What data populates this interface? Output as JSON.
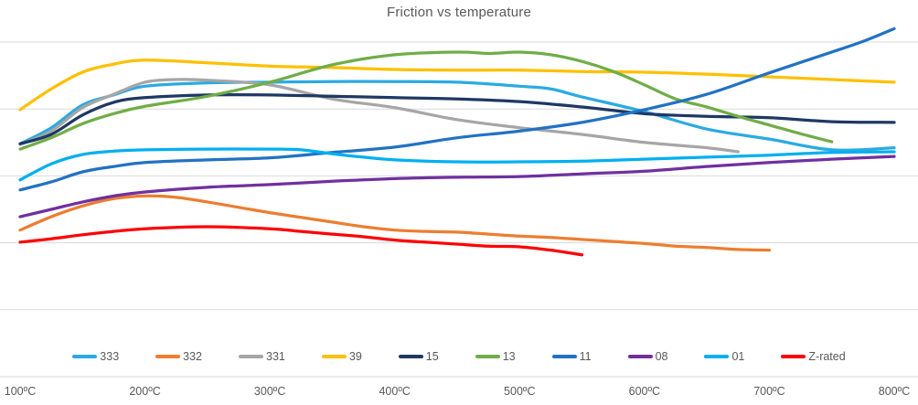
{
  "title": "Friction vs temperature",
  "colors": {
    "background": "#ffffff",
    "gridline": "#d9d9d9",
    "axis_line": "#d9d9d9",
    "title_text": "#595959",
    "label_text": "#595959"
  },
  "chart_data": {
    "type": "line",
    "title": "Friction vs temperature",
    "xlabel": "",
    "ylabel": "",
    "x_unit": "ºC",
    "x_range": [
      100,
      800
    ],
    "y_axis_labels_visible": false,
    "y_gridlines": [
      0,
      0.1,
      0.2,
      0.3,
      0.4,
      0.5
    ],
    "grid": true,
    "legend_position": "bottom",
    "x_ticks": [
      {
        "label": "100ºC",
        "t": 100
      },
      {
        "label": "200ºC",
        "t": 200
      },
      {
        "label": "300ºC",
        "t": 300
      },
      {
        "label": "400ºC",
        "t": 400
      },
      {
        "label": "500ºC",
        "t": 500
      },
      {
        "label": "600ºC",
        "t": 600
      },
      {
        "label": "700ºC",
        "t": 700
      },
      {
        "label": "800ºC",
        "t": 800
      }
    ],
    "series": [
      {
        "name": "333",
        "color": "#2baae2",
        "points": [
          [
            100,
            0.348
          ],
          [
            125,
            0.372
          ],
          [
            150,
            0.406
          ],
          [
            175,
            0.421
          ],
          [
            200,
            0.434
          ],
          [
            250,
            0.439
          ],
          [
            300,
            0.44
          ],
          [
            350,
            0.441
          ],
          [
            400,
            0.441
          ],
          [
            450,
            0.44
          ],
          [
            500,
            0.434
          ],
          [
            525,
            0.43
          ],
          [
            550,
            0.418
          ],
          [
            600,
            0.396
          ],
          [
            650,
            0.37
          ],
          [
            700,
            0.355
          ],
          [
            750,
            0.339
          ],
          [
            800,
            0.342
          ]
        ]
      },
      {
        "name": "332",
        "color": "#ed7d31",
        "points": [
          [
            100,
            0.219
          ],
          [
            125,
            0.239
          ],
          [
            150,
            0.255
          ],
          [
            175,
            0.266
          ],
          [
            200,
            0.27
          ],
          [
            225,
            0.268
          ],
          [
            250,
            0.261
          ],
          [
            275,
            0.253
          ],
          [
            300,
            0.245
          ],
          [
            325,
            0.238
          ],
          [
            350,
            0.231
          ],
          [
            375,
            0.224
          ],
          [
            400,
            0.219
          ],
          [
            425,
            0.217
          ],
          [
            450,
            0.216
          ],
          [
            475,
            0.213
          ],
          [
            500,
            0.21
          ],
          [
            525,
            0.208
          ],
          [
            550,
            0.205
          ],
          [
            575,
            0.202
          ],
          [
            600,
            0.199
          ],
          [
            625,
            0.195
          ],
          [
            650,
            0.193
          ],
          [
            675,
            0.19
          ],
          [
            700,
            0.189
          ]
        ]
      },
      {
        "name": "331",
        "color": "#a6a6a6",
        "points": [
          [
            100,
            0.347
          ],
          [
            125,
            0.367
          ],
          [
            150,
            0.402
          ],
          [
            175,
            0.422
          ],
          [
            200,
            0.44
          ],
          [
            225,
            0.444
          ],
          [
            250,
            0.443
          ],
          [
            300,
            0.436
          ],
          [
            350,
            0.415
          ],
          [
            400,
            0.402
          ],
          [
            450,
            0.384
          ],
          [
            500,
            0.372
          ],
          [
            550,
            0.362
          ],
          [
            600,
            0.35
          ],
          [
            650,
            0.342
          ],
          [
            675,
            0.336
          ]
        ]
      },
      {
        "name": "39",
        "color": "#ffc000",
        "points": [
          [
            100,
            0.399
          ],
          [
            125,
            0.43
          ],
          [
            150,
            0.455
          ],
          [
            175,
            0.467
          ],
          [
            200,
            0.473
          ],
          [
            250,
            0.469
          ],
          [
            300,
            0.464
          ],
          [
            350,
            0.462
          ],
          [
            400,
            0.459
          ],
          [
            450,
            0.458
          ],
          [
            500,
            0.458
          ],
          [
            550,
            0.456
          ],
          [
            600,
            0.455
          ],
          [
            650,
            0.452
          ],
          [
            700,
            0.448
          ],
          [
            750,
            0.444
          ],
          [
            800,
            0.44
          ]
        ]
      },
      {
        "name": "15",
        "color": "#1f3864",
        "points": [
          [
            100,
            0.348
          ],
          [
            125,
            0.362
          ],
          [
            150,
            0.391
          ],
          [
            175,
            0.41
          ],
          [
            200,
            0.417
          ],
          [
            250,
            0.421
          ],
          [
            300,
            0.421
          ],
          [
            350,
            0.419
          ],
          [
            400,
            0.417
          ],
          [
            450,
            0.415
          ],
          [
            500,
            0.411
          ],
          [
            550,
            0.403
          ],
          [
            600,
            0.393
          ],
          [
            650,
            0.389
          ],
          [
            700,
            0.387
          ],
          [
            750,
            0.381
          ],
          [
            800,
            0.38
          ]
        ]
      },
      {
        "name": "13",
        "color": "#70ad47",
        "points": [
          [
            100,
            0.34
          ],
          [
            125,
            0.357
          ],
          [
            150,
            0.378
          ],
          [
            175,
            0.393
          ],
          [
            200,
            0.404
          ],
          [
            250,
            0.419
          ],
          [
            300,
            0.44
          ],
          [
            350,
            0.466
          ],
          [
            400,
            0.481
          ],
          [
            450,
            0.485
          ],
          [
            475,
            0.483
          ],
          [
            500,
            0.485
          ],
          [
            525,
            0.481
          ],
          [
            550,
            0.471
          ],
          [
            575,
            0.456
          ],
          [
            600,
            0.436
          ],
          [
            625,
            0.415
          ],
          [
            650,
            0.403
          ],
          [
            675,
            0.389
          ],
          [
            700,
            0.376
          ],
          [
            725,
            0.363
          ],
          [
            750,
            0.351
          ]
        ]
      },
      {
        "name": "11",
        "color": "#2272c3",
        "points": [
          [
            100,
            0.279
          ],
          [
            125,
            0.291
          ],
          [
            150,
            0.306
          ],
          [
            175,
            0.314
          ],
          [
            200,
            0.32
          ],
          [
            250,
            0.324
          ],
          [
            300,
            0.327
          ],
          [
            350,
            0.335
          ],
          [
            400,
            0.343
          ],
          [
            450,
            0.357
          ],
          [
            500,
            0.367
          ],
          [
            550,
            0.38
          ],
          [
            600,
            0.399
          ],
          [
            650,
            0.422
          ],
          [
            700,
            0.454
          ],
          [
            750,
            0.485
          ],
          [
            775,
            0.501
          ],
          [
            800,
            0.52
          ]
        ]
      },
      {
        "name": "08",
        "color": "#7030a0",
        "points": [
          [
            100,
            0.239
          ],
          [
            125,
            0.25
          ],
          [
            150,
            0.261
          ],
          [
            175,
            0.27
          ],
          [
            200,
            0.276
          ],
          [
            250,
            0.283
          ],
          [
            300,
            0.287
          ],
          [
            350,
            0.292
          ],
          [
            400,
            0.296
          ],
          [
            450,
            0.298
          ],
          [
            500,
            0.299
          ],
          [
            550,
            0.303
          ],
          [
            600,
            0.307
          ],
          [
            650,
            0.314
          ],
          [
            700,
            0.32
          ],
          [
            750,
            0.325
          ],
          [
            800,
            0.329
          ]
        ]
      },
      {
        "name": "01",
        "color": "#00b0f0",
        "points": [
          [
            100,
            0.294
          ],
          [
            125,
            0.318
          ],
          [
            150,
            0.332
          ],
          [
            175,
            0.337
          ],
          [
            200,
            0.339
          ],
          [
            250,
            0.34
          ],
          [
            300,
            0.34
          ],
          [
            325,
            0.339
          ],
          [
            350,
            0.333
          ],
          [
            375,
            0.328
          ],
          [
            400,
            0.324
          ],
          [
            450,
            0.321
          ],
          [
            500,
            0.321
          ],
          [
            550,
            0.322
          ],
          [
            600,
            0.325
          ],
          [
            650,
            0.328
          ],
          [
            700,
            0.331
          ],
          [
            750,
            0.335
          ],
          [
            800,
            0.336
          ]
        ]
      },
      {
        "name": "Z-rated",
        "color": "#ff0000",
        "points": [
          [
            100,
            0.201
          ],
          [
            125,
            0.206
          ],
          [
            150,
            0.212
          ],
          [
            175,
            0.217
          ],
          [
            200,
            0.221
          ],
          [
            250,
            0.224
          ],
          [
            300,
            0.221
          ],
          [
            325,
            0.217
          ],
          [
            350,
            0.213
          ],
          [
            375,
            0.209
          ],
          [
            400,
            0.204
          ],
          [
            425,
            0.201
          ],
          [
            450,
            0.198
          ],
          [
            475,
            0.195
          ],
          [
            500,
            0.194
          ],
          [
            525,
            0.189
          ],
          [
            550,
            0.182
          ]
        ]
      }
    ]
  }
}
